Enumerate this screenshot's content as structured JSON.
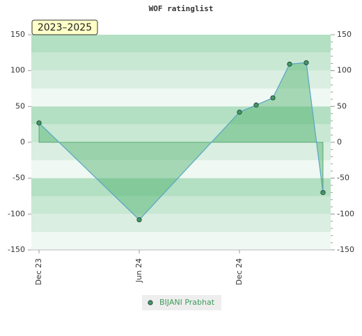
{
  "chart_data": {
    "type": "area",
    "title": "WOF ratinglist",
    "badge": "2023–2025",
    "x": [
      "2023-12",
      "2024-06",
      "2024-12",
      "2025-01",
      "2025-02",
      "2025-03",
      "2025-04",
      "2025-05"
    ],
    "series": [
      {
        "name": "BIJANI Prabhat",
        "color": "#3e9b5c",
        "values": [
          27,
          -108,
          42,
          52,
          62,
          109,
          111,
          -70
        ]
      }
    ],
    "xticks": [
      {
        "value": "2023-12",
        "label": "Dec 23"
      },
      {
        "value": "2024-06",
        "label": "Jun 24"
      },
      {
        "value": "2024-12",
        "label": "Dec 24"
      }
    ],
    "ylim": [
      -150,
      150
    ],
    "yticks": [
      -150,
      -100,
      -50,
      0,
      50,
      100,
      150
    ],
    "legend": "bottom"
  }
}
